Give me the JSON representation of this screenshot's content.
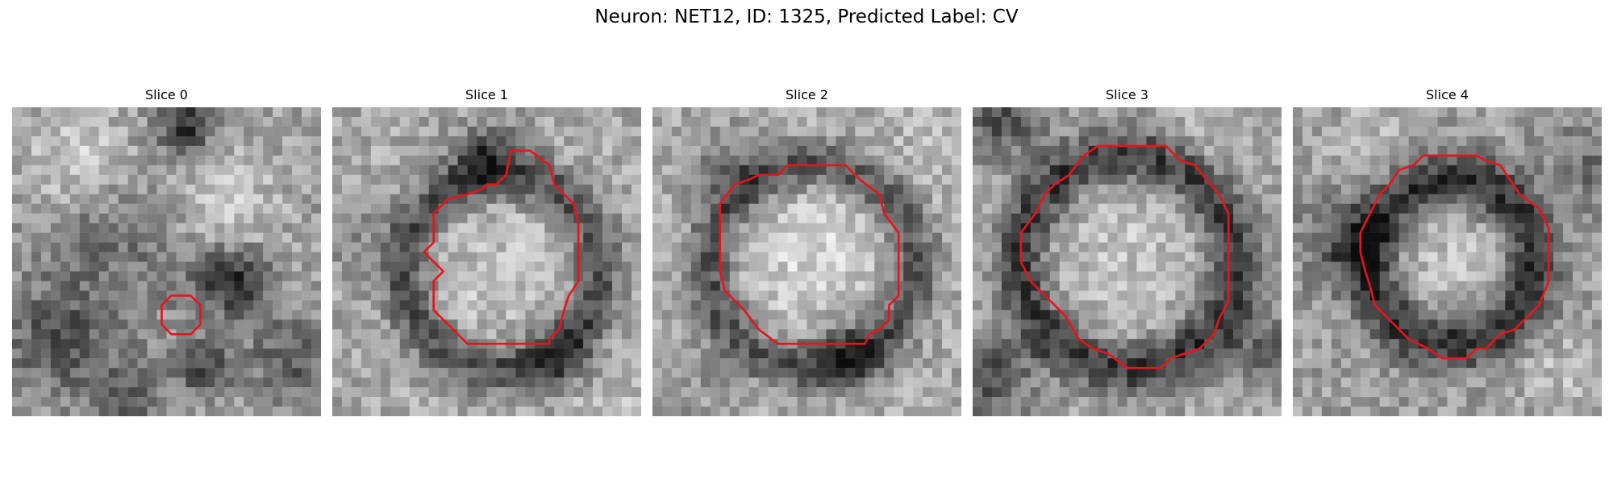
{
  "figure": {
    "title": "Neuron: NET12, ID: 1325, Predicted Label: CV"
  },
  "slices": [
    {
      "title": "Slice 0"
    },
    {
      "title": "Slice 1"
    },
    {
      "title": "Slice 2"
    },
    {
      "title": "Slice 3"
    },
    {
      "title": "Slice 4"
    }
  ],
  "colors": {
    "contour": "#e8141c",
    "colormap": "gray"
  }
}
